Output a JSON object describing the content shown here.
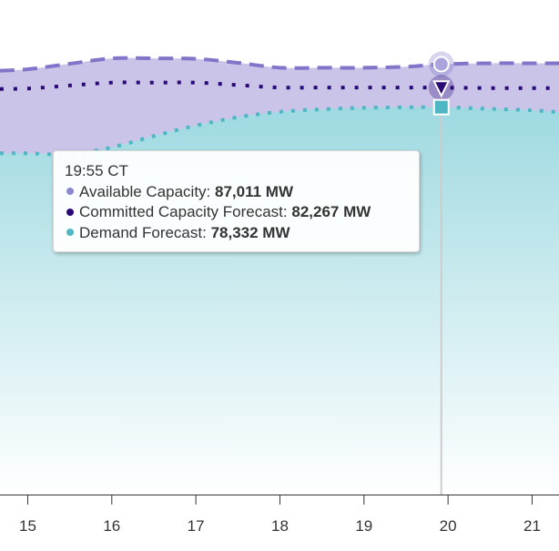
{
  "chart_data": {
    "type": "area",
    "x_ticks": [
      15,
      16,
      17,
      18,
      19,
      20,
      21
    ],
    "xlim": [
      14.67,
      21.32
    ],
    "ylim": [
      0,
      100000
    ],
    "grid": false,
    "hover_x": 19.92,
    "series": [
      {
        "name": "Available Capacity",
        "style": "dashed",
        "color": "#8075c9",
        "fill": "#c9c4e8",
        "x": [
          14.67,
          15.0,
          15.5,
          16.0,
          16.5,
          17.0,
          17.5,
          18.0,
          18.5,
          19.0,
          19.5,
          19.92,
          20.5,
          21.0,
          21.32
        ],
        "y": [
          85700,
          86000,
          87100,
          88200,
          88200,
          88100,
          87300,
          86300,
          86300,
          86300,
          86500,
          87011,
          87200,
          87200,
          87200
        ]
      },
      {
        "name": "Committed Capacity Forecast",
        "style": "dotted",
        "color": "#2b0a78",
        "x": [
          14.67,
          15.0,
          15.5,
          16.0,
          16.5,
          17.0,
          17.5,
          18.0,
          18.5,
          19.0,
          19.5,
          19.92,
          20.5,
          21.0,
          21.32
        ],
        "y": [
          82000,
          82100,
          82700,
          83300,
          83300,
          83300,
          82800,
          82300,
          82300,
          82300,
          82300,
          82267,
          82200,
          82200,
          82200
        ]
      },
      {
        "name": "Demand Forecast",
        "style": "dotted",
        "color": "#4fb6c4",
        "fill": "#a7dde4",
        "x": [
          14.67,
          15.0,
          15.5,
          16.0,
          16.5,
          17.0,
          17.5,
          18.0,
          18.5,
          19.0,
          19.5,
          19.92,
          20.5,
          21.0,
          21.32
        ],
        "y": [
          69000,
          69000,
          68800,
          70200,
          72500,
          74600,
          76300,
          77400,
          77900,
          78200,
          78300,
          78332,
          78000,
          77700,
          77300
        ]
      }
    ]
  },
  "tooltip": {
    "time": "19:55 CT",
    "rows": [
      {
        "label": "Available Capacity: ",
        "value": "87,011 MW",
        "color": "#8d86d0"
      },
      {
        "label": "Committed Capacity Forecast: ",
        "value": "82,267 MW",
        "color": "#2b0a78"
      },
      {
        "label": "Demand Forecast: ",
        "value": "78,332 MW",
        "color": "#4fb6c4"
      }
    ]
  }
}
